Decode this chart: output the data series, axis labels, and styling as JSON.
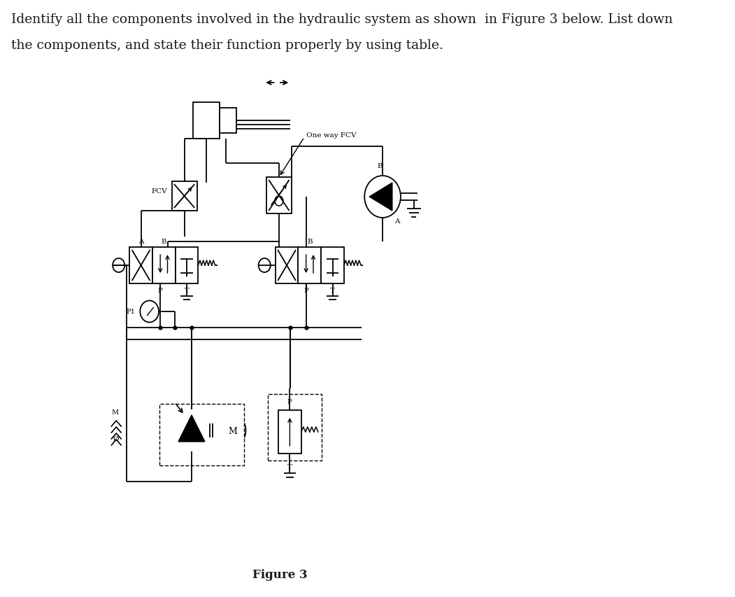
{
  "title_line1": "Identify all the components involved in the hydraulic system as shown  in Figure 3 below. List down",
  "title_line2": "the components, and state their function properly by using table.",
  "figure_label": "Figure 3",
  "bg_color": "#ffffff",
  "text_color": "#1a1a1a",
  "line_color": "#1a1a1a",
  "font_size_title": 13.5,
  "font_size_label": 7.5,
  "font_size_figure": 12
}
